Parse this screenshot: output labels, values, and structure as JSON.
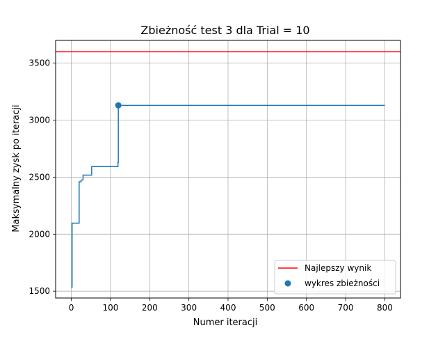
{
  "chart_data": {
    "type": "line",
    "title": "Zbieżność test 3 dla Trial = 10",
    "xlabel": "Numer iteracji",
    "ylabel": "Maksymalny zysk po iteracji",
    "xlim": [
      -40,
      840
    ],
    "ylim": [
      1440,
      3700
    ],
    "xticks": [
      0,
      100,
      200,
      300,
      400,
      500,
      600,
      700,
      800
    ],
    "yticks": [
      1500,
      2000,
      2500,
      3000,
      3500
    ],
    "grid": true,
    "legend_position": "bottom-right",
    "series": [
      {
        "name": "",
        "type": "step-line",
        "color": "#1f77b4",
        "x": [
          0,
          2,
          19,
          20,
          25,
          30,
          48,
          52,
          119,
          120,
          800
        ],
        "y": [
          1535,
          2097,
          2097,
          2460,
          2475,
          2518,
          2518,
          2593,
          2630,
          3130,
          3130
        ]
      },
      {
        "name": "Najlepszy wynik",
        "type": "hline",
        "color": "#ff0000",
        "y": 3600
      },
      {
        "name": "wykres zbieżności",
        "type": "scatter",
        "color": "#1f77b4",
        "x": [
          120
        ],
        "y": [
          3130
        ]
      }
    ],
    "legend": [
      "Najlepszy wynik",
      "wykres zbieżności"
    ]
  }
}
